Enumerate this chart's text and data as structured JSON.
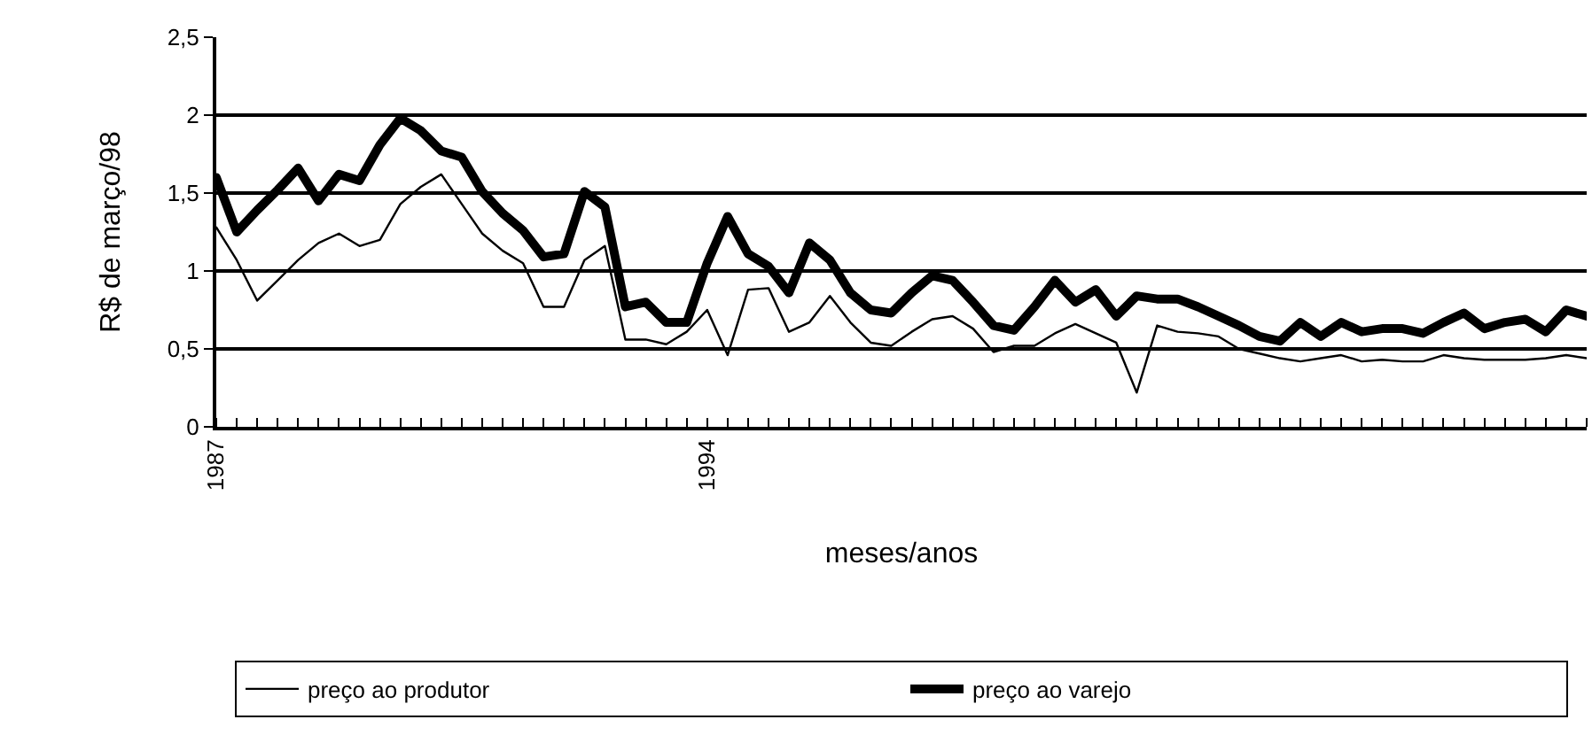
{
  "chart_data": {
    "type": "line",
    "categories": [
      "1987",
      null,
      null,
      null,
      null,
      null,
      null,
      null,
      null,
      null,
      null,
      null,
      null,
      null,
      null,
      null,
      null,
      null,
      null,
      null,
      null,
      null,
      null,
      null,
      "1994",
      null,
      null,
      null,
      null,
      null,
      null,
      null,
      null,
      null,
      null,
      null,
      null,
      null,
      null,
      null,
      null,
      null,
      null,
      null,
      null,
      null,
      null,
      null,
      null,
      null,
      null,
      null,
      null,
      null,
      null,
      null,
      null,
      null,
      null,
      null,
      null,
      null,
      null,
      null,
      null,
      null,
      null,
      null
    ],
    "series": [
      {
        "name": "preço ao produtor",
        "color": "#000000",
        "values": [
          1.28,
          1.07,
          0.81,
          0.94,
          1.07,
          1.18,
          1.24,
          1.16,
          1.2,
          1.43,
          1.54,
          1.62,
          1.43,
          1.24,
          1.13,
          1.05,
          0.77,
          0.77,
          1.07,
          1.16,
          0.56,
          0.56,
          0.53,
          0.61,
          0.75,
          0.46,
          0.88,
          0.89,
          0.61,
          0.67,
          0.84,
          0.67,
          0.54,
          0.52,
          0.61,
          0.69,
          0.71,
          0.63,
          0.48,
          0.52,
          0.52,
          0.6,
          0.66,
          0.6,
          0.54,
          0.22,
          0.65,
          0.61,
          0.6,
          0.58,
          0.5,
          0.47,
          0.44,
          0.42,
          0.44,
          0.46,
          0.42,
          0.43,
          0.42,
          0.42,
          0.46,
          0.44,
          0.43,
          0.43,
          0.43,
          0.44,
          0.46,
          0.44
        ]
      },
      {
        "name": "preço ao varejo",
        "color": "#000000",
        "values": [
          1.6,
          1.25,
          1.39,
          1.52,
          1.66,
          1.45,
          1.62,
          1.58,
          1.81,
          1.98,
          1.9,
          1.77,
          1.73,
          1.51,
          1.37,
          1.26,
          1.09,
          1.11,
          1.51,
          1.41,
          0.77,
          0.8,
          0.67,
          0.67,
          1.05,
          1.35,
          1.11,
          1.03,
          0.86,
          1.18,
          1.07,
          0.86,
          0.75,
          0.73,
          0.86,
          0.97,
          0.94,
          0.8,
          0.65,
          0.62,
          0.77,
          0.94,
          0.8,
          0.88,
          0.71,
          0.84,
          0.82,
          0.82,
          0.77,
          0.71,
          0.65,
          0.58,
          0.55,
          0.67,
          0.58,
          0.67,
          0.61,
          0.63,
          0.63,
          0.6,
          0.67,
          0.73,
          0.63,
          0.67,
          0.69,
          0.61,
          0.75,
          0.71
        ]
      }
    ],
    "xlabel": "meses/anos",
    "ylabel": "R$ de março/98",
    "ylim": [
      0,
      2.5
    ],
    "yticks": [
      0,
      {
        "value": 0.5,
        "label": "0,5"
      },
      1,
      {
        "value": 1.5,
        "label": "1,5"
      },
      2,
      {
        "value": 2.5,
        "label": "2,5"
      }
    ],
    "grid": "y",
    "legend": "bottom",
    "marker": "none",
    "line_style": "solid"
  }
}
